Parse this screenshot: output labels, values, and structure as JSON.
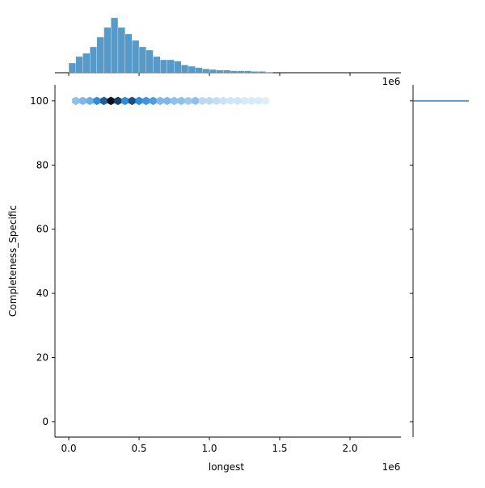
{
  "chart_data": {
    "type": "hexbin-joint",
    "x_label": "longest",
    "y_label": "Completeness_Specific",
    "x_offset_label": "1e6",
    "xlim": [
      -0.098,
      2.362
    ],
    "ylim": [
      -4.8,
      105
    ],
    "xticks": [
      {
        "value": 0,
        "label": "0.0"
      },
      {
        "value": 0.5,
        "label": "0.5"
      },
      {
        "value": 1,
        "label": "1.0"
      },
      {
        "value": 1.5,
        "label": "1.5"
      },
      {
        "value": 2,
        "label": "2.0"
      }
    ],
    "yticks": [
      0,
      20,
      40,
      60,
      80,
      100
    ],
    "color": "#1f77b4",
    "hexbins": {
      "y": 100,
      "x": [
        0.05,
        0.1,
        0.15,
        0.2,
        0.25,
        0.3,
        0.35,
        0.4,
        0.45,
        0.5,
        0.55,
        0.6,
        0.65,
        0.7,
        0.75,
        0.8,
        0.85,
        0.9,
        0.95,
        1.0,
        1.05,
        1.1,
        1.15,
        1.2,
        1.25,
        1.3,
        1.35,
        1.4
      ],
      "counts": [
        30,
        35,
        40,
        60,
        75,
        100,
        85,
        60,
        80,
        60,
        55,
        50,
        35,
        35,
        30,
        30,
        25,
        30,
        15,
        15,
        12,
        10,
        8,
        8,
        6,
        6,
        5,
        3
      ]
    },
    "x_hist": {
      "ylim": [
        0,
        95
      ],
      "bins": [
        0,
        0.05,
        0.1,
        0.15,
        0.2,
        0.25,
        0.3,
        0.35,
        0.4,
        0.45,
        0.5,
        0.55,
        0.6,
        0.65,
        0.7,
        0.75,
        0.8,
        0.85,
        0.9,
        0.95,
        1.0,
        1.05,
        1.1,
        1.15,
        1.2,
        1.25,
        1.3,
        1.35,
        1.4,
        1.45,
        1.5,
        1.55,
        1.6,
        1.65,
        1.7,
        1.75,
        1.8,
        1.85,
        1.9,
        1.95,
        2.0,
        2.05,
        2.1,
        2.15,
        2.2,
        2.25,
        2.3
      ],
      "counts": [
        15,
        25,
        30,
        40,
        55,
        70,
        85,
        70,
        60,
        50,
        40,
        35,
        25,
        20,
        20,
        18,
        12,
        10,
        8,
        6,
        5,
        4,
        4,
        3,
        3,
        3,
        2,
        2,
        1,
        0,
        0,
        0,
        0,
        0,
        0,
        0,
        0,
        0,
        0,
        0,
        0,
        0,
        0,
        0,
        0,
        0
      ]
    },
    "y_hist": {
      "bins": [
        99.75,
        100.25
      ],
      "counts": [
        1
      ]
    }
  }
}
